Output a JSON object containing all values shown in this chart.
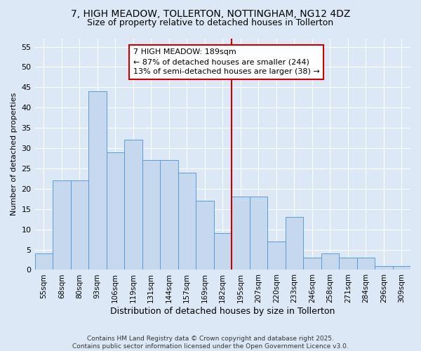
{
  "title_line1": "7, HIGH MEADOW, TOLLERTON, NOTTINGHAM, NG12 4DZ",
  "title_line2": "Size of property relative to detached houses in Tollerton",
  "xlabel": "Distribution of detached houses by size in Tollerton",
  "ylabel": "Number of detached properties",
  "categories": [
    "55sqm",
    "68sqm",
    "80sqm",
    "93sqm",
    "106sqm",
    "119sqm",
    "131sqm",
    "144sqm",
    "157sqm",
    "169sqm",
    "182sqm",
    "195sqm",
    "207sqm",
    "220sqm",
    "233sqm",
    "246sqm",
    "258sqm",
    "271sqm",
    "284sqm",
    "296sqm",
    "309sqm"
  ],
  "values": [
    4,
    22,
    22,
    44,
    29,
    32,
    27,
    27,
    24,
    17,
    9,
    18,
    18,
    7,
    13,
    3,
    4,
    3,
    3,
    1,
    1
  ],
  "bar_color": "#c5d8ed",
  "bar_edge_color": "#5b9bd5",
  "vline_x": 10.5,
  "vline_color": "#cc0000",
  "annotation_title": "7 HIGH MEADOW: 189sqm",
  "annotation_line2": "← 87% of detached houses are smaller (244)",
  "annotation_line3": "13% of semi-detached houses are larger (38) →",
  "annotation_box_color": "#ffffff",
  "annotation_box_edge": "#cc0000",
  "background_color": "#dce8f5",
  "grid_color": "#ffffff",
  "footer": "Contains HM Land Registry data © Crown copyright and database right 2025.\nContains public sector information licensed under the Open Government Licence v3.0.",
  "ylim": [
    0,
    57
  ],
  "yticks": [
    0,
    5,
    10,
    15,
    20,
    25,
    30,
    35,
    40,
    45,
    50,
    55
  ]
}
